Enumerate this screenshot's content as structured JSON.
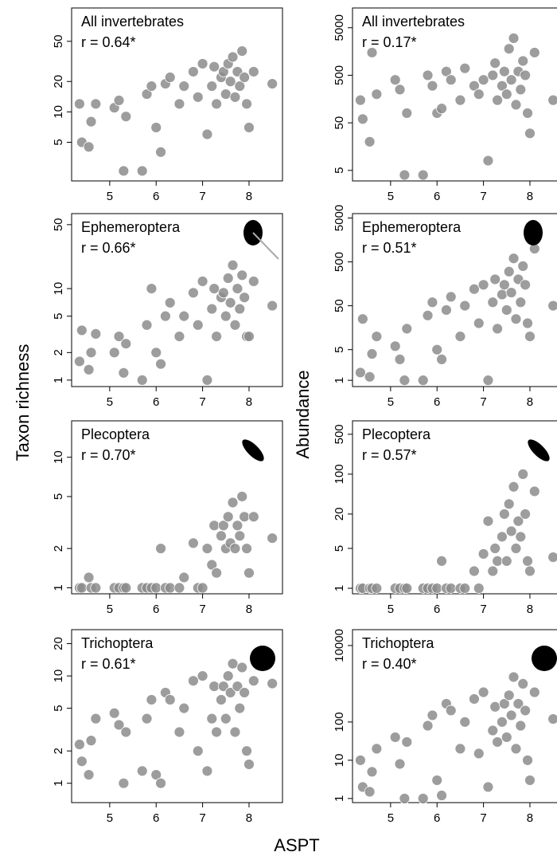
{
  "figure": {
    "y_left_label": "Taxon richness",
    "y_right_label": "Abundance",
    "x_label": "ASPT"
  },
  "chart_data": [
    {
      "type": "scatter",
      "title": "All invertebrates",
      "annotation": "r = 0.64*",
      "color": "#8c8c8c",
      "log_y": true,
      "xlim": [
        4.18,
        8.72
      ],
      "xticks": [
        5,
        6,
        7,
        8
      ],
      "ylim": [
        2.07,
        107
      ],
      "yticks": [
        5,
        10,
        20,
        50
      ],
      "x": [
        4.35,
        4.4,
        4.55,
        4.6,
        4.7,
        5.1,
        5.2,
        5.3,
        5.35,
        5.7,
        5.8,
        5.9,
        6.0,
        6.1,
        6.2,
        6.3,
        6.5,
        6.6,
        6.8,
        6.9,
        7.0,
        7.1,
        7.2,
        7.25,
        7.3,
        7.4,
        7.45,
        7.5,
        7.55,
        7.6,
        7.65,
        7.7,
        7.75,
        7.8,
        7.85,
        7.9,
        7.95,
        8.0,
        8.1,
        8.5
      ],
      "values": [
        12,
        5,
        4.5,
        8,
        12,
        11,
        13,
        2.6,
        9,
        2.6,
        15,
        18,
        7,
        4,
        19,
        22,
        12,
        18,
        25,
        14,
        30,
        6,
        18,
        28,
        12,
        22,
        25,
        15,
        30,
        20,
        35,
        14,
        25,
        18,
        40,
        22,
        12,
        7,
        25,
        19
      ]
    },
    {
      "type": "scatter",
      "title": "All invertebrates",
      "annotation": "r = 0.17*",
      "color": "#8c8c8c",
      "log_y": true,
      "xlim": [
        4.18,
        8.72
      ],
      "xticks": [
        5,
        6,
        7,
        8
      ],
      "ylim": [
        3,
        13000
      ],
      "yticks": [
        5,
        50,
        500,
        5000
      ],
      "x": [
        4.35,
        4.4,
        4.55,
        4.6,
        4.7,
        5.1,
        5.2,
        5.3,
        5.35,
        5.7,
        5.8,
        5.9,
        6.0,
        6.1,
        6.2,
        6.3,
        6.5,
        6.6,
        6.8,
        6.9,
        7.0,
        7.1,
        7.2,
        7.25,
        7.3,
        7.4,
        7.45,
        7.5,
        7.55,
        7.6,
        7.65,
        7.7,
        7.75,
        7.8,
        7.85,
        7.9,
        7.95,
        8.0,
        8.1,
        8.5
      ],
      "values": [
        150,
        60,
        20,
        1500,
        200,
        400,
        250,
        4,
        80,
        4,
        500,
        300,
        80,
        100,
        600,
        400,
        150,
        700,
        300,
        200,
        400,
        8,
        500,
        900,
        150,
        300,
        600,
        200,
        1800,
        400,
        3000,
        120,
        600,
        250,
        1000,
        500,
        80,
        30,
        1500,
        150
      ]
    },
    {
      "type": "scatter",
      "title": "Ephemeroptera",
      "annotation": "r = 0.66*",
      "color": "#8c8c8c",
      "log_y": true,
      "xlim": [
        4.18,
        8.72
      ],
      "xticks": [
        5,
        6,
        7,
        8
      ],
      "ylim": [
        0.85,
        66
      ],
      "yticks": [
        1,
        2,
        5,
        10,
        50
      ],
      "x": [
        4.35,
        4.4,
        4.55,
        4.6,
        4.7,
        5.1,
        5.2,
        5.3,
        5.35,
        5.7,
        5.8,
        5.9,
        6.0,
        6.1,
        6.2,
        6.3,
        6.5,
        6.6,
        6.8,
        6.9,
        7.0,
        7.1,
        7.2,
        7.25,
        7.3,
        7.4,
        7.45,
        7.5,
        7.55,
        7.6,
        7.65,
        7.7,
        7.75,
        7.8,
        7.85,
        7.9,
        7.95,
        8.0,
        8.1,
        8.5
      ],
      "values": [
        1.6,
        3.5,
        1.3,
        2,
        3.2,
        2,
        3,
        1.2,
        2.5,
        1,
        4,
        10,
        2,
        1.5,
        5,
        7,
        3,
        5,
        9,
        4,
        12,
        1,
        6,
        10,
        3,
        8,
        9,
        5,
        13,
        7,
        18,
        4,
        10,
        6,
        14,
        8,
        3,
        3,
        12,
        6.5
      ]
    },
    {
      "type": "scatter",
      "title": "Ephemeroptera",
      "annotation": "r = 0.51*",
      "color": "#8c8c8c",
      "log_y": true,
      "xlim": [
        4.18,
        8.72
      ],
      "xticks": [
        5,
        6,
        7,
        8
      ],
      "ylim": [
        0.72,
        6300
      ],
      "yticks": [
        1,
        5,
        50,
        500,
        5000
      ],
      "x": [
        4.35,
        4.4,
        4.55,
        4.6,
        4.7,
        5.1,
        5.2,
        5.3,
        5.35,
        5.7,
        5.8,
        5.9,
        6.0,
        6.1,
        6.2,
        6.3,
        6.5,
        6.6,
        6.8,
        6.9,
        7.0,
        7.1,
        7.2,
        7.25,
        7.3,
        7.4,
        7.45,
        7.5,
        7.55,
        7.6,
        7.65,
        7.7,
        7.75,
        7.8,
        7.85,
        7.9,
        7.95,
        8.0,
        8.1,
        8.5
      ],
      "values": [
        1.5,
        25,
        1.2,
        4,
        10,
        6,
        3,
        1,
        15,
        1,
        30,
        60,
        5,
        3,
        40,
        80,
        10,
        50,
        120,
        20,
        150,
        1,
        60,
        200,
        15,
        90,
        150,
        40,
        300,
        100,
        600,
        25,
        200,
        60,
        400,
        150,
        20,
        10,
        1000,
        50
      ]
    },
    {
      "type": "scatter",
      "title": "Plecoptera",
      "annotation": "r = 0.70*",
      "color": "#8c8c8c",
      "log_y": true,
      "xlim": [
        4.18,
        8.72
      ],
      "xticks": [
        5,
        6,
        7,
        8
      ],
      "ylim": [
        0.9,
        19
      ],
      "yticks": [
        1,
        2,
        5,
        10
      ],
      "x": [
        4.35,
        4.4,
        4.55,
        4.6,
        4.7,
        5.1,
        5.2,
        5.3,
        5.35,
        5.7,
        5.8,
        5.9,
        6.0,
        6.1,
        6.2,
        6.3,
        6.5,
        6.6,
        6.8,
        6.9,
        7.0,
        7.1,
        7.2,
        7.25,
        7.3,
        7.4,
        7.45,
        7.5,
        7.55,
        7.6,
        7.65,
        7.7,
        7.75,
        7.8,
        7.85,
        7.9,
        7.95,
        8.0,
        8.1,
        8.5
      ],
      "values": [
        1,
        1,
        1.2,
        1,
        1,
        1,
        1,
        1,
        1,
        1,
        1,
        1,
        1,
        2,
        1,
        1,
        1,
        1.2,
        2.2,
        1,
        1,
        2,
        1.5,
        3,
        1.3,
        2.5,
        3,
        2,
        3.5,
        2.2,
        4.5,
        2,
        3,
        2.5,
        5,
        3.5,
        2,
        1.3,
        3.5,
        2.4
      ]
    },
    {
      "type": "scatter",
      "title": "Plecoptera",
      "annotation": "r = 0.57*",
      "color": "#8c8c8c",
      "log_y": true,
      "xlim": [
        4.18,
        8.72
      ],
      "xticks": [
        5,
        6,
        7,
        8
      ],
      "ylim": [
        0.8,
        860
      ],
      "yticks": [
        1,
        5,
        20,
        100,
        500
      ],
      "x": [
        4.35,
        4.4,
        4.55,
        4.6,
        4.7,
        5.1,
        5.2,
        5.3,
        5.35,
        5.7,
        5.8,
        5.9,
        6.0,
        6.1,
        6.2,
        6.3,
        6.5,
        6.6,
        6.8,
        6.9,
        7.0,
        7.1,
        7.2,
        7.25,
        7.3,
        7.4,
        7.45,
        7.5,
        7.55,
        7.6,
        7.65,
        7.7,
        7.75,
        7.8,
        7.85,
        7.9,
        7.95,
        8.0,
        8.1,
        8.5
      ],
      "values": [
        1,
        1,
        1,
        1,
        1,
        1,
        1,
        1,
        1,
        1,
        1,
        1,
        1,
        3,
        1,
        1,
        1,
        1,
        2,
        1,
        4,
        15,
        2,
        5,
        3,
        8,
        20,
        3,
        30,
        10,
        60,
        5,
        15,
        8,
        100,
        20,
        3,
        2,
        50,
        3.5
      ]
    },
    {
      "type": "scatter",
      "title": "Trichoptera",
      "annotation": "r = 0.61*",
      "color": "#8c8c8c",
      "log_y": true,
      "xlim": [
        4.18,
        8.72
      ],
      "xticks": [
        5,
        6,
        7,
        8
      ],
      "ylim": [
        0.66,
        27
      ],
      "yticks": [
        1,
        2,
        5,
        10,
        20
      ],
      "x": [
        4.35,
        4.4,
        4.55,
        4.6,
        4.7,
        5.1,
        5.2,
        5.3,
        5.35,
        5.7,
        5.8,
        5.9,
        6.0,
        6.1,
        6.2,
        6.3,
        6.5,
        6.6,
        6.8,
        6.9,
        7.0,
        7.1,
        7.2,
        7.25,
        7.3,
        7.4,
        7.45,
        7.5,
        7.55,
        7.6,
        7.65,
        7.7,
        7.75,
        7.8,
        7.85,
        7.9,
        7.95,
        8.0,
        8.1,
        8.5
      ],
      "values": [
        2.3,
        1.6,
        1.2,
        2.5,
        4,
        4.5,
        3.5,
        1,
        3,
        1.3,
        4,
        6,
        1.2,
        1,
        7,
        6,
        3,
        5,
        9,
        2,
        10,
        1.3,
        4,
        8,
        3,
        6,
        8,
        4,
        10,
        7,
        13,
        3,
        8,
        5,
        12,
        7,
        2,
        1.5,
        9,
        8.5
      ]
    },
    {
      "type": "scatter",
      "title": "Trichoptera",
      "annotation": "r = 0.40*",
      "color": "#8c8c8c",
      "log_y": true,
      "xlim": [
        4.18,
        8.72
      ],
      "xticks": [
        5,
        6,
        7,
        8
      ],
      "ylim": [
        0.78,
        26000
      ],
      "yticks": [
        1,
        10,
        100,
        10000
      ],
      "x": [
        4.35,
        4.4,
        4.55,
        4.6,
        4.7,
        5.1,
        5.2,
        5.3,
        5.35,
        5.7,
        5.8,
        5.9,
        6.0,
        6.1,
        6.2,
        6.3,
        6.5,
        6.6,
        6.8,
        6.9,
        7.0,
        7.1,
        7.2,
        7.25,
        7.3,
        7.4,
        7.45,
        7.5,
        7.55,
        7.6,
        7.65,
        7.7,
        7.75,
        7.8,
        7.85,
        7.9,
        7.95,
        8.0,
        8.1,
        8.5
      ],
      "values": [
        10,
        2,
        1.5,
        5,
        20,
        40,
        8,
        1,
        30,
        1,
        80,
        150,
        3,
        1.2,
        300,
        200,
        20,
        100,
        400,
        15,
        600,
        2,
        60,
        250,
        30,
        100,
        300,
        40,
        500,
        150,
        1500,
        20,
        300,
        80,
        1000,
        200,
        10,
        3,
        600,
        120
      ]
    }
  ]
}
